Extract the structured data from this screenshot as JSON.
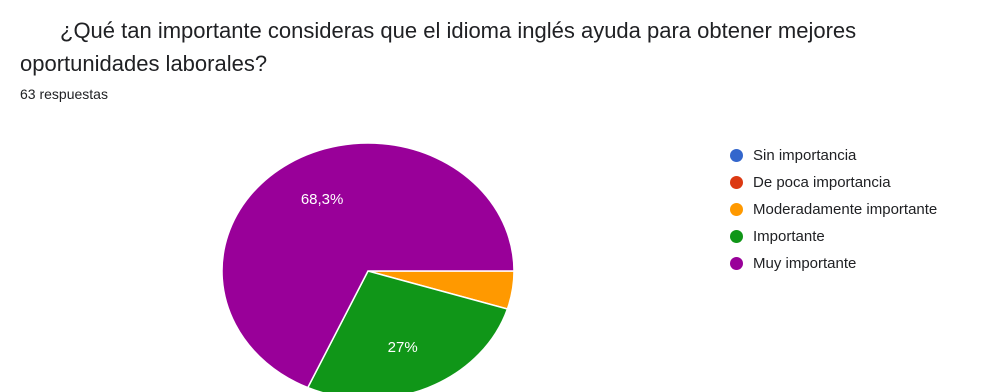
{
  "question": {
    "title": "¿Qué tan importante consideras que el idioma inglés ayuda para obtener mejores oportunidades laborales?",
    "response_count": "63 respuestas"
  },
  "chart_data": {
    "type": "pie",
    "categories": [
      "Sin importancia",
      "De poca importancia",
      "Moderadamente importante",
      "Importante",
      "Muy importante"
    ],
    "values": [
      0,
      0,
      4.8,
      27,
      68.3
    ],
    "data_labels": [
      "",
      "",
      "",
      "27%",
      "68,3%"
    ],
    "colors": [
      "#3366cc",
      "#dc3912",
      "#ff9900",
      "#109618",
      "#990099"
    ],
    "legend_position": "right"
  }
}
